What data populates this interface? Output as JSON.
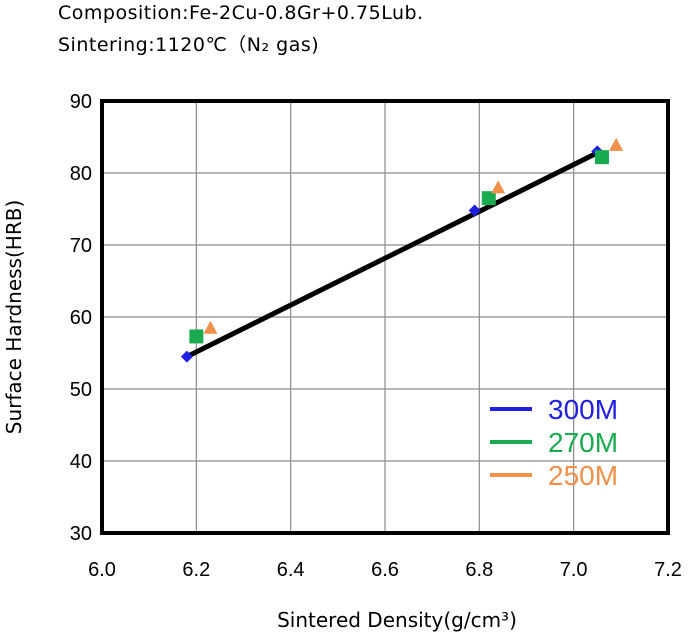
{
  "chart_data": {
    "type": "scatter",
    "subtitle_lines": [
      "Composition:Fe-2Cu-0.8Gr+0.75Lub.",
      "Sintering:1120℃（N₂ gas)"
    ],
    "xlabel": "Sintered Density(g/cm³)",
    "ylabel": "Surface Hardness(HRB)",
    "xlim": [
      6.0,
      7.2
    ],
    "ylim": [
      30,
      90
    ],
    "xticks": [
      "6.0",
      "6.2",
      "6.4",
      "6.6",
      "6.8",
      "7.0",
      "7.2"
    ],
    "yticks": [
      "30",
      "40",
      "50",
      "60",
      "70",
      "80",
      "90"
    ],
    "grid": true,
    "legend_position": "bottom-right",
    "series": [
      {
        "name": "300M",
        "color": "#1f1fe0",
        "marker": "diamond",
        "points": [
          [
            6.18,
            54.5
          ],
          [
            6.79,
            74.8
          ],
          [
            7.05,
            83.0
          ]
        ]
      },
      {
        "name": "270M",
        "color": "#1aaa50",
        "marker": "square",
        "points": [
          [
            6.2,
            57.3
          ],
          [
            6.82,
            76.5
          ],
          [
            7.06,
            82.2
          ]
        ]
      },
      {
        "name": "250M",
        "color": "#f0904a",
        "marker": "triangle",
        "points": [
          [
            6.23,
            58.5
          ],
          [
            6.84,
            78.0
          ],
          [
            7.09,
            83.9
          ]
        ]
      }
    ],
    "trendline": {
      "color": "#000000",
      "from": [
        6.18,
        54.5
      ],
      "to": [
        7.05,
        82.8
      ]
    }
  }
}
